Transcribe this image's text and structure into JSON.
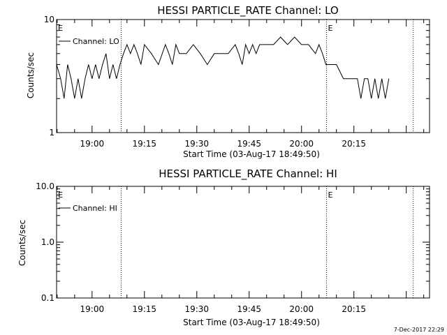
{
  "chart_data": [
    {
      "type": "line",
      "title": "HESSI PARTICLE_RATE Channel: LO",
      "xlabel": "Start Time (03-Aug-17 18:49:50)",
      "ylabel": "Counts/sec",
      "yscale": "log",
      "ylim": [
        1,
        10
      ],
      "yticks": [
        "1",
        "10"
      ],
      "xlim": [
        "18:49:50",
        "20:36:40"
      ],
      "xticks": [
        "19:00",
        "19:15",
        "19:30",
        "19:45",
        "20:00",
        "20:15"
      ],
      "legend": "top-left",
      "grid": false,
      "markers": [
        {
          "label": "E",
          "time": "18:49:50",
          "style": "edge"
        },
        {
          "label": "",
          "time": "19:08:20",
          "style": "dotted"
        },
        {
          "label": "E",
          "time": "20:07:10",
          "style": "dotted"
        },
        {
          "label": "",
          "time": "20:32:00",
          "style": "dotted"
        }
      ],
      "series": [
        {
          "name": "Channel: LO",
          "x": [
            "18:49:50",
            "18:51:00",
            "18:52:00",
            "18:53:00",
            "18:54:00",
            "18:55:00",
            "18:56:00",
            "18:57:00",
            "18:58:00",
            "18:59:00",
            "19:00:00",
            "19:01:00",
            "19:02:00",
            "19:03:00",
            "19:04:00",
            "19:05:00",
            "19:06:00",
            "19:07:00",
            "19:08:00",
            "19:09:00",
            "19:10:00",
            "19:11:00",
            "19:12:00",
            "19:13:00",
            "19:14:00",
            "19:15:00",
            "19:17:00",
            "19:19:00",
            "19:21:00",
            "19:22:00",
            "19:23:00",
            "19:24:00",
            "19:25:00",
            "19:27:00",
            "19:29:00",
            "19:31:00",
            "19:33:00",
            "19:35:00",
            "19:37:00",
            "19:39:00",
            "19:41:00",
            "19:42:00",
            "19:43:00",
            "19:44:00",
            "19:45:00",
            "19:46:00",
            "19:47:00",
            "19:48:00",
            "19:50:00",
            "19:52:00",
            "19:54:00",
            "19:56:00",
            "19:58:00",
            "20:00:00",
            "20:02:00",
            "20:04:00",
            "20:05:00",
            "20:06:00",
            "20:07:00",
            "20:08:00",
            "20:10:00",
            "20:12:00",
            "20:14:00",
            "20:16:00",
            "20:17:00",
            "20:18:00",
            "20:19:00",
            "20:20:00",
            "20:21:00",
            "20:22:00",
            "20:23:00",
            "20:24:00",
            "20:25:00"
          ],
          "y": [
            4,
            3,
            2,
            4,
            3,
            2,
            3,
            2,
            3,
            4,
            3,
            4,
            3,
            4,
            5,
            3,
            4,
            3,
            4,
            5,
            6,
            5,
            6,
            5,
            4,
            6,
            5,
            4,
            6,
            5,
            4,
            6,
            5,
            5,
            6,
            5,
            4,
            5,
            5,
            5,
            6,
            5,
            4,
            6,
            5,
            6,
            5,
            6,
            6,
            6,
            7,
            6,
            7,
            6,
            6,
            5,
            6,
            5,
            4,
            4,
            4,
            3,
            3,
            3,
            2,
            3,
            3,
            2,
            3,
            2,
            3,
            2,
            3
          ]
        }
      ]
    },
    {
      "type": "line",
      "title": "HESSI PARTICLE_RATE Channel: HI",
      "xlabel": "Start Time (03-Aug-17 18:49:50)",
      "ylabel": "Counts/sec",
      "yscale": "log",
      "ylim": [
        0.1,
        10
      ],
      "yticks": [
        "0.1",
        "1.0",
        "10.0"
      ],
      "xlim": [
        "18:49:50",
        "20:36:40"
      ],
      "xticks": [
        "19:00",
        "19:15",
        "19:30",
        "19:45",
        "20:00",
        "20:15"
      ],
      "legend": "top-left",
      "grid": false,
      "markers": [
        {
          "label": "E",
          "time": "18:49:50",
          "style": "edge"
        },
        {
          "label": "",
          "time": "19:08:20",
          "style": "dotted"
        },
        {
          "label": "E",
          "time": "20:07:10",
          "style": "dotted"
        },
        {
          "label": "",
          "time": "20:32:00",
          "style": "dotted"
        }
      ],
      "series": [
        {
          "name": "Channel: HI",
          "x": [],
          "y": []
        }
      ]
    }
  ],
  "footer": {
    "timestamp": "7-Dec-2017 22:29"
  }
}
